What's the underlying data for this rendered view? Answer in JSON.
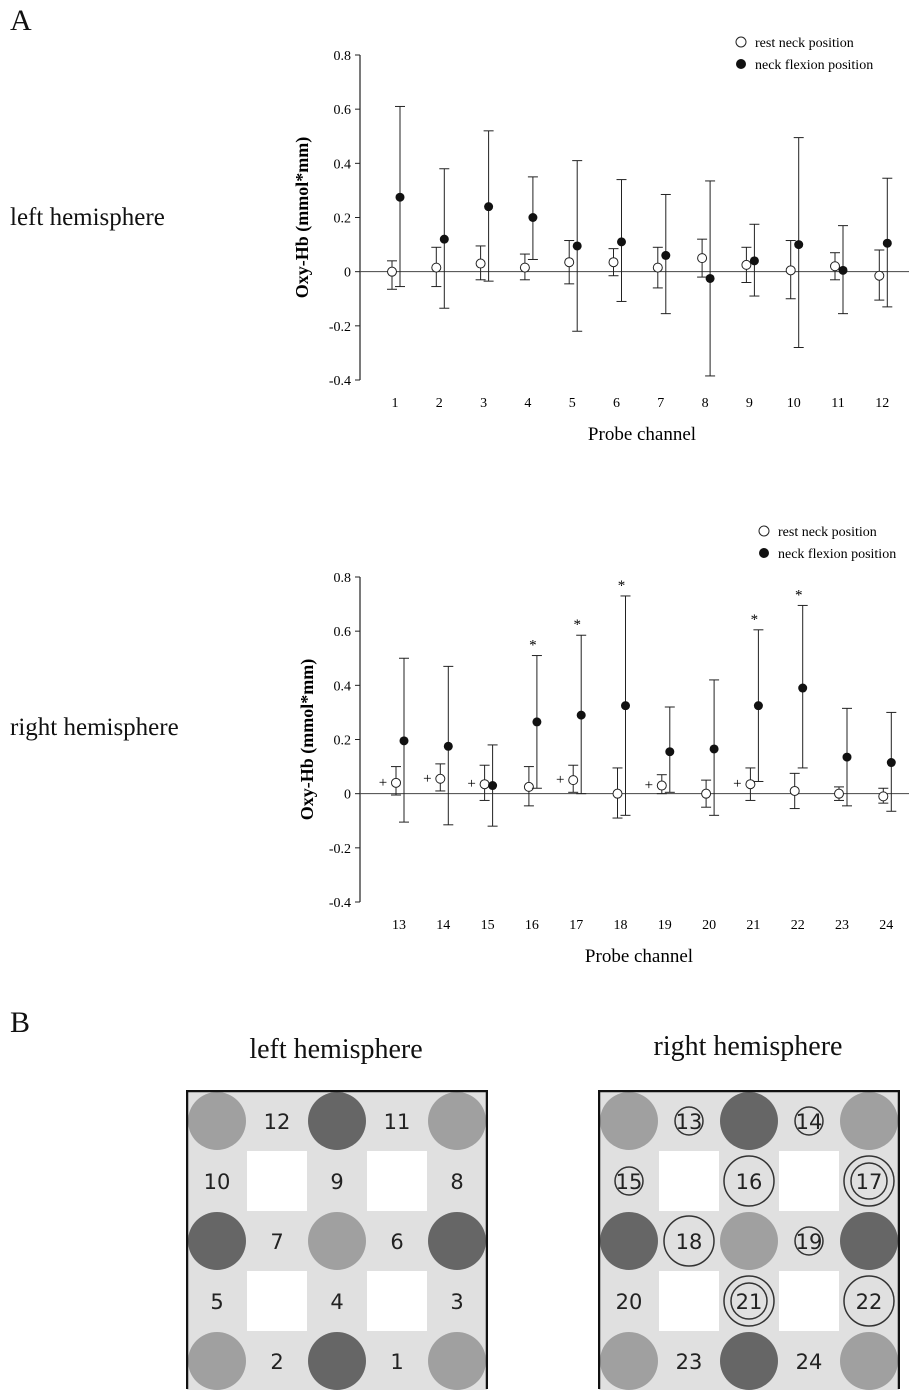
{
  "panel_a_label": "A",
  "panel_b_label": "B",
  "charts_side_labels": [
    "left hemisphere",
    "right hemisphere"
  ],
  "chart_data": [
    {
      "type": "scatter",
      "side_label": "left hemisphere",
      "xlabel": "Probe channel",
      "ylabel": "Oxy-Hb (mmol*mm)",
      "ylim": [
        -0.4,
        0.8
      ],
      "yticks": [
        "0.8",
        "0.6",
        "0.4",
        "0.2",
        "0",
        "-0.2",
        "-0.4"
      ],
      "categories": [
        "1",
        "2",
        "3",
        "4",
        "5",
        "6",
        "7",
        "8",
        "9",
        "10",
        "11",
        "12"
      ],
      "legend_position": "top-right",
      "series": [
        {
          "name": "rest neck position",
          "marker": "open-circle",
          "values": [
            0.0,
            0.015,
            0.03,
            0.015,
            0.035,
            0.035,
            0.015,
            0.05,
            0.025,
            0.005,
            0.02,
            -0.015
          ],
          "err_high": [
            0.04,
            0.09,
            0.095,
            0.065,
            0.115,
            0.085,
            0.09,
            0.12,
            0.09,
            0.115,
            0.07,
            0.08
          ],
          "err_low": [
            -0.065,
            -0.055,
            -0.03,
            -0.03,
            -0.045,
            -0.015,
            -0.06,
            -0.02,
            -0.04,
            -0.1,
            -0.03,
            -0.105
          ]
        },
        {
          "name": "neck flexion position",
          "marker": "filled-circle",
          "values": [
            0.275,
            0.12,
            0.24,
            0.2,
            0.095,
            0.11,
            0.06,
            -0.025,
            0.04,
            0.1,
            0.005,
            0.105
          ],
          "err_high": [
            0.61,
            0.38,
            0.52,
            0.35,
            0.41,
            0.34,
            0.285,
            0.335,
            0.175,
            0.495,
            0.17,
            0.345
          ],
          "err_low": [
            -0.055,
            -0.135,
            -0.035,
            0.045,
            -0.22,
            -0.11,
            -0.155,
            -0.385,
            -0.09,
            -0.28,
            -0.155,
            -0.13
          ]
        }
      ],
      "annotations": []
    },
    {
      "type": "scatter",
      "side_label": "right hemisphere",
      "xlabel": "Probe channel",
      "ylabel": "Oxy-Hb (mmol*mm)",
      "ylim": [
        -0.4,
        0.8
      ],
      "yticks": [
        "0.8",
        "0.6",
        "0.4",
        "0.2",
        "0",
        "-0.2",
        "-0.4"
      ],
      "categories": [
        "13",
        "14",
        "15",
        "16",
        "17",
        "18",
        "19",
        "20",
        "21",
        "22",
        "23",
        "24"
      ],
      "legend_position": "top-right",
      "series": [
        {
          "name": "rest neck position",
          "marker": "open-circle",
          "values": [
            0.04,
            0.055,
            0.035,
            0.025,
            0.05,
            0.0,
            0.03,
            0.0,
            0.035,
            0.01,
            0.0,
            -0.01
          ],
          "err_high": [
            0.1,
            0.11,
            0.105,
            0.1,
            0.105,
            0.095,
            0.07,
            0.05,
            0.095,
            0.075,
            0.025,
            0.02
          ],
          "err_low": [
            -0.005,
            0.01,
            -0.025,
            -0.045,
            0.005,
            -0.09,
            0.0,
            -0.05,
            -0.025,
            -0.055,
            -0.025,
            -0.035
          ]
        },
        {
          "name": "neck flexion position",
          "marker": "filled-circle",
          "values": [
            0.195,
            0.175,
            0.03,
            0.265,
            0.29,
            0.325,
            0.155,
            0.165,
            0.325,
            0.39,
            0.135,
            0.115
          ],
          "err_high": [
            0.5,
            0.47,
            0.18,
            0.51,
            0.585,
            0.73,
            0.32,
            0.42,
            0.605,
            0.695,
            0.315,
            0.3
          ],
          "err_low": [
            -0.105,
            -0.115,
            -0.12,
            0.02,
            0.0,
            -0.08,
            0.005,
            -0.08,
            0.045,
            0.095,
            -0.045,
            -0.065
          ]
        }
      ],
      "annotations": [
        {
          "channel": "13",
          "mark": "+"
        },
        {
          "channel": "14",
          "mark": "+"
        },
        {
          "channel": "15",
          "mark": "+"
        },
        {
          "channel": "16",
          "mark": "*"
        },
        {
          "channel": "17",
          "mark": "+"
        },
        {
          "channel": "17",
          "mark": "*"
        },
        {
          "channel": "18",
          "mark": "*"
        },
        {
          "channel": "19",
          "mark": "+"
        },
        {
          "channel": "21",
          "mark": "+"
        },
        {
          "channel": "21",
          "mark": "*"
        },
        {
          "channel": "22",
          "mark": "*"
        }
      ]
    }
  ],
  "probe_layout": {
    "left": {
      "title": "left hemisphere",
      "rows": [
        [
          {
            "t": "dot",
            "c": "light"
          },
          {
            "t": "ch",
            "n": "12"
          },
          {
            "t": "dot",
            "c": "dark"
          },
          {
            "t": "ch",
            "n": "11"
          },
          {
            "t": "dot",
            "c": "light"
          }
        ],
        [
          {
            "t": "ch",
            "n": "10"
          },
          {
            "t": "blank"
          },
          {
            "t": "ch",
            "n": "9"
          },
          {
            "t": "blank"
          },
          {
            "t": "ch",
            "n": "8"
          }
        ],
        [
          {
            "t": "dot",
            "c": "dark"
          },
          {
            "t": "ch",
            "n": "7"
          },
          {
            "t": "dot",
            "c": "light"
          },
          {
            "t": "ch",
            "n": "6"
          },
          {
            "t": "dot",
            "c": "dark"
          }
        ],
        [
          {
            "t": "ch",
            "n": "5"
          },
          {
            "t": "blank"
          },
          {
            "t": "ch",
            "n": "4"
          },
          {
            "t": "blank"
          },
          {
            "t": "ch",
            "n": "3"
          }
        ],
        [
          {
            "t": "dot",
            "c": "light"
          },
          {
            "t": "ch",
            "n": "2"
          },
          {
            "t": "dot",
            "c": "dark"
          },
          {
            "t": "ch",
            "n": "1"
          },
          {
            "t": "dot",
            "c": "light"
          }
        ]
      ]
    },
    "right": {
      "title": "right hemisphere",
      "rows": [
        [
          {
            "t": "dot",
            "c": "light"
          },
          {
            "t": "ch",
            "n": "13",
            "ring": "small"
          },
          {
            "t": "dot",
            "c": "dark"
          },
          {
            "t": "ch",
            "n": "14",
            "ring": "small"
          },
          {
            "t": "dot",
            "c": "light"
          }
        ],
        [
          {
            "t": "ch",
            "n": "15",
            "ring": "small"
          },
          {
            "t": "blank"
          },
          {
            "t": "ch",
            "n": "16",
            "ring": "large"
          },
          {
            "t": "blank"
          },
          {
            "t": "ch",
            "n": "17",
            "ring": "double"
          }
        ],
        [
          {
            "t": "dot",
            "c": "dark"
          },
          {
            "t": "ch",
            "n": "18",
            "ring": "large"
          },
          {
            "t": "dot",
            "c": "light"
          },
          {
            "t": "ch",
            "n": "19",
            "ring": "small"
          },
          {
            "t": "dot",
            "c": "dark"
          }
        ],
        [
          {
            "t": "ch",
            "n": "20"
          },
          {
            "t": "blank"
          },
          {
            "t": "ch",
            "n": "21",
            "ring": "double"
          },
          {
            "t": "blank"
          },
          {
            "t": "ch",
            "n": "22",
            "ring": "large"
          }
        ],
        [
          {
            "t": "dot",
            "c": "light"
          },
          {
            "t": "ch",
            "n": "23"
          },
          {
            "t": "dot",
            "c": "dark"
          },
          {
            "t": "ch",
            "n": "24"
          },
          {
            "t": "dot",
            "c": "light"
          }
        ]
      ]
    }
  },
  "colors": {
    "light_dot": "#a0a0a0",
    "dark_dot": "#666666",
    "checker": "#e0e0e0"
  }
}
